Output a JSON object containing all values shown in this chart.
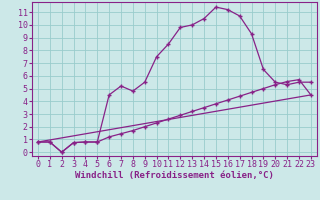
{
  "xlabel": "Windchill (Refroidissement éolien,°C)",
  "background_color": "#cce8e8",
  "grid_color": "#99cccc",
  "line_color": "#882288",
  "xlim": [
    -0.5,
    23.5
  ],
  "ylim": [
    -0.3,
    11.8
  ],
  "xticks": [
    0,
    1,
    2,
    3,
    4,
    5,
    6,
    7,
    8,
    9,
    10,
    11,
    12,
    13,
    14,
    15,
    16,
    17,
    18,
    19,
    20,
    21,
    22,
    23
  ],
  "yticks": [
    0,
    1,
    2,
    3,
    4,
    5,
    6,
    7,
    8,
    9,
    10,
    11
  ],
  "line1_x": [
    0,
    1,
    2,
    3,
    4,
    5,
    6,
    7,
    8,
    9,
    10,
    11,
    12,
    13,
    14,
    15,
    16,
    17,
    18,
    19,
    20,
    21,
    22,
    23
  ],
  "line1_y": [
    0.8,
    0.8,
    0.0,
    0.75,
    0.8,
    0.8,
    4.5,
    5.2,
    4.8,
    5.5,
    7.5,
    8.5,
    9.8,
    10.0,
    10.5,
    11.4,
    11.2,
    10.7,
    9.3,
    6.5,
    5.5,
    5.3,
    5.5,
    5.5
  ],
  "line2_x": [
    0,
    1,
    2,
    3,
    4,
    5,
    6,
    7,
    8,
    9,
    10,
    11,
    12,
    13,
    14,
    15,
    16,
    17,
    18,
    19,
    20,
    21,
    22,
    23
  ],
  "line2_y": [
    0.8,
    0.8,
    0.0,
    0.75,
    0.8,
    0.8,
    1.2,
    1.45,
    1.7,
    2.0,
    2.3,
    2.6,
    2.9,
    3.2,
    3.5,
    3.8,
    4.1,
    4.4,
    4.7,
    5.0,
    5.3,
    5.55,
    5.7,
    4.5
  ],
  "line3_x": [
    0,
    23
  ],
  "line3_y": [
    0.8,
    4.5
  ],
  "xlabel_fontsize": 6.5,
  "tick_fontsize": 6.0
}
